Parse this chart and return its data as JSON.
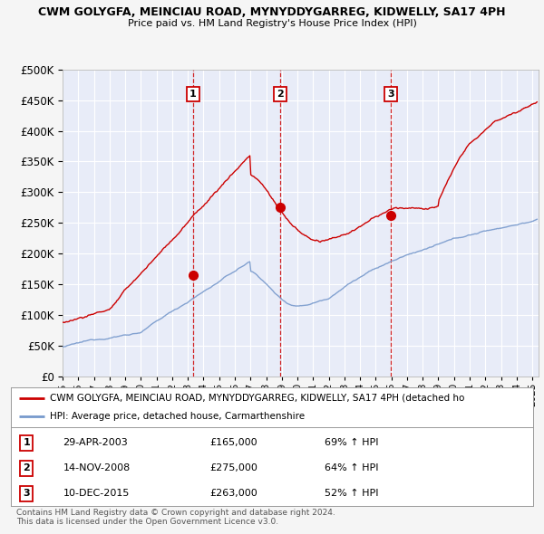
{
  "title_line1": "CWM GOLYGFA, MEINCIAU ROAD, MYNYDDYGARREG, KIDWELLY, SA17 4PH",
  "title_line2": "Price paid vs. HM Land Registry's House Price Index (HPI)",
  "ylim": [
    0,
    500000
  ],
  "yticks": [
    0,
    50000,
    100000,
    150000,
    200000,
    250000,
    300000,
    350000,
    400000,
    450000,
    500000
  ],
  "ytick_labels": [
    "£0",
    "£50K",
    "£100K",
    "£150K",
    "£200K",
    "£250K",
    "£300K",
    "£350K",
    "£400K",
    "£450K",
    "£500K"
  ],
  "xlim_start": 1995.0,
  "xlim_end": 2025.4,
  "sale_dates": [
    2003.33,
    2008.88,
    2015.95
  ],
  "sale_prices": [
    165000,
    275000,
    263000
  ],
  "sale_labels": [
    "1",
    "2",
    "3"
  ],
  "sale_date_strs": [
    "29-APR-2003",
    "14-NOV-2008",
    "10-DEC-2015"
  ],
  "sale_price_strs": [
    "£165,000",
    "£275,000",
    "£263,000"
  ],
  "sale_hpi_strs": [
    "69% ↑ HPI",
    "64% ↑ HPI",
    "52% ↑ HPI"
  ],
  "red_color": "#cc0000",
  "blue_color": "#7799cc",
  "legend_red_label": "CWM GOLYGFA, MEINCIAU ROAD, MYNYDDYGARREG, KIDWELLY, SA17 4PH (detached ho",
  "legend_blue_label": "HPI: Average price, detached house, Carmarthenshire",
  "footer_line1": "Contains HM Land Registry data © Crown copyright and database right 2024.",
  "footer_line2": "This data is licensed under the Open Government Licence v3.0.",
  "plot_bg_color": "#e8ecf8",
  "grid_color": "#ffffff"
}
